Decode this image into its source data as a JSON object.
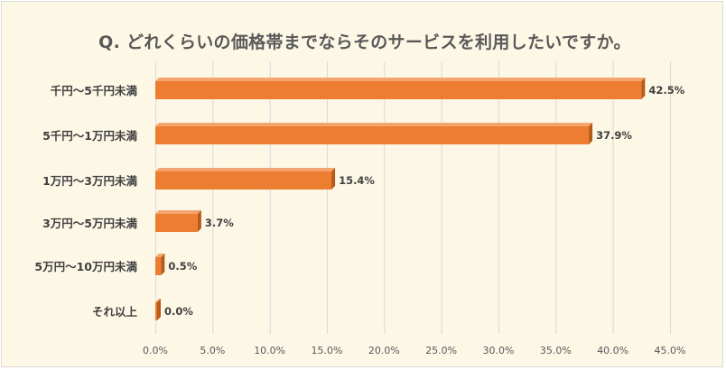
{
  "chart_data": {
    "type": "bar",
    "orientation": "horizontal",
    "title": "Q. どれくらいの価格帯までならそのサービスを利用したいですか。",
    "categories": [
      "千円～5千円未満",
      "5千円～1万円未満",
      "1万円～3万円未満",
      "3万円～5万円未満",
      "5万円～10万円未満",
      "それ以上"
    ],
    "values": [
      42.5,
      37.9,
      15.4,
      3.7,
      0.5,
      0.0
    ],
    "value_labels": [
      "42.5%",
      "37.9%",
      "15.4%",
      "3.7%",
      "0.5%",
      "0.0%"
    ],
    "xlim": [
      0,
      45
    ],
    "xticks": [
      0,
      5,
      10,
      15,
      20,
      25,
      30,
      35,
      40,
      45
    ],
    "xtick_labels": [
      "0.0%",
      "5.0%",
      "10.0%",
      "15.0%",
      "20.0%",
      "25.0%",
      "30.0%",
      "35.0%",
      "40.0%",
      "45.0%"
    ],
    "grid": true,
    "legend": "none",
    "colors": {
      "bar_front": "#ed7d31",
      "bar_side": "#b85a1b",
      "bar_top": "#f4a56f",
      "grid": "#d9d9d9",
      "background": "#fdf7e6"
    }
  }
}
